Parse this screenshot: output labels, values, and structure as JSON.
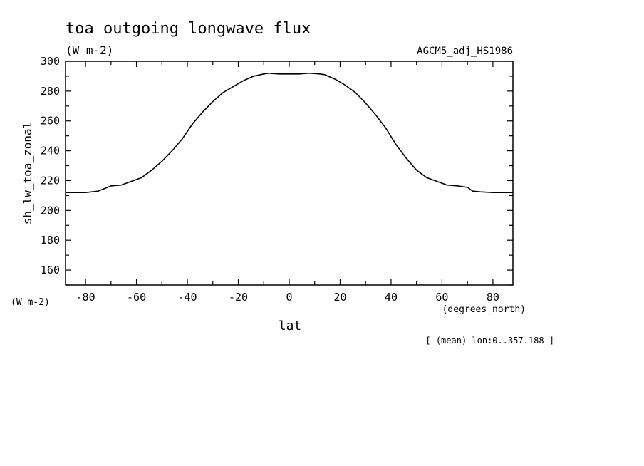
{
  "chart_data": {
    "type": "line",
    "title": "toa outgoing longwave flux",
    "title_units": "(W m-2)",
    "dataset": "AGCM5_adj_HS1986",
    "ylabel": "sh_lw_toa_zonal",
    "y_units": "(W m-2)",
    "xlabel": "lat",
    "x_units": "(degrees_north)",
    "footnote": "[ (mean) lon:0..357.188 ]",
    "xlim": [
      -87.86,
      87.86
    ],
    "ylim": [
      150,
      300
    ],
    "x_ticks": [
      -80,
      -60,
      -40,
      -20,
      0,
      20,
      40,
      60,
      80
    ],
    "x_tick_labels": [
      "-80",
      "-60",
      "-40",
      "-20",
      "0",
      "20",
      "40",
      "60",
      "80"
    ],
    "y_ticks": [
      160,
      180,
      200,
      220,
      240,
      260,
      280,
      300
    ],
    "y_tick_labels": [
      "160",
      "180",
      "200",
      "220",
      "240",
      "260",
      "280",
      "300"
    ],
    "grid": false,
    "line_color": "#000000",
    "x": [
      -87.86,
      -80,
      -75,
      -72,
      -70,
      -66,
      -62,
      -58,
      -54,
      -50,
      -46,
      -42,
      -38,
      -34,
      -30,
      -26,
      -22,
      -18,
      -14,
      -10,
      -8,
      -4,
      0,
      4,
      8,
      12,
      14,
      18,
      22,
      26,
      30,
      34,
      38,
      42,
      46,
      50,
      54,
      58,
      62,
      66,
      70,
      72,
      75,
      80,
      87.86
    ],
    "y": [
      212,
      212,
      213,
      215,
      216.5,
      217,
      219.5,
      222,
      227,
      233,
      240,
      248,
      258,
      266,
      273,
      279,
      283,
      287,
      290,
      291.5,
      292,
      291.5,
      291.5,
      291.5,
      292,
      291.5,
      291,
      288,
      284,
      279,
      272,
      264,
      255,
      244,
      235,
      227,
      222,
      219.5,
      217,
      216.5,
      215.5,
      213,
      212.5,
      212,
      212
    ]
  }
}
